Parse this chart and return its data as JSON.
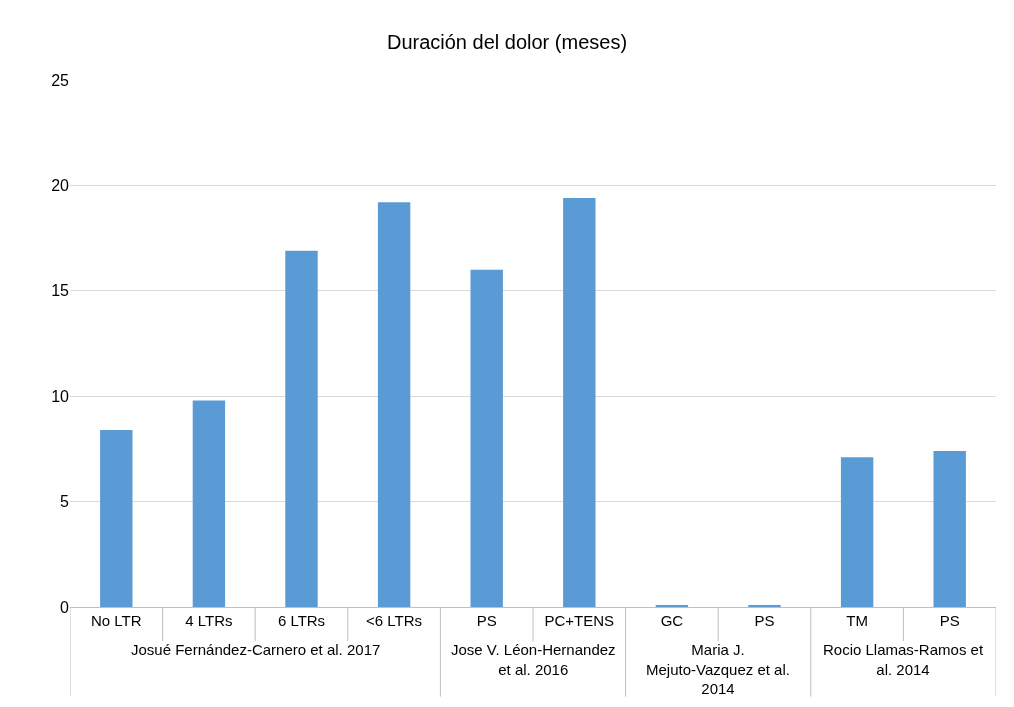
{
  "chart_data": {
    "type": "bar",
    "title": "Duración del dolor (meses)",
    "categories": [
      "No LTR",
      "4 LTRs",
      "6 LTRs",
      "<6 LTRs",
      "PS",
      "PC+TENS",
      "GC",
      "PS",
      "TM",
      "PS"
    ],
    "values": [
      8.4,
      9.8,
      16.9,
      19.2,
      16.0,
      19.4,
      0.1,
      0.1,
      7.1,
      7.4
    ],
    "color": "#5b9bd5",
    "ylim": [
      0,
      25
    ],
    "yticks": [
      0,
      5,
      10,
      15,
      20,
      25
    ],
    "grid": "y",
    "legend": false,
    "annotations": [
      "Josué Fernández-Carnero et al. 2017",
      "Jose V. Léon-Hernandez et al. 2016",
      "Maria J. Mejuto-Vazquez et al. 2014",
      "Rocio Llamas-Ramos et al. 2014"
    ]
  }
}
